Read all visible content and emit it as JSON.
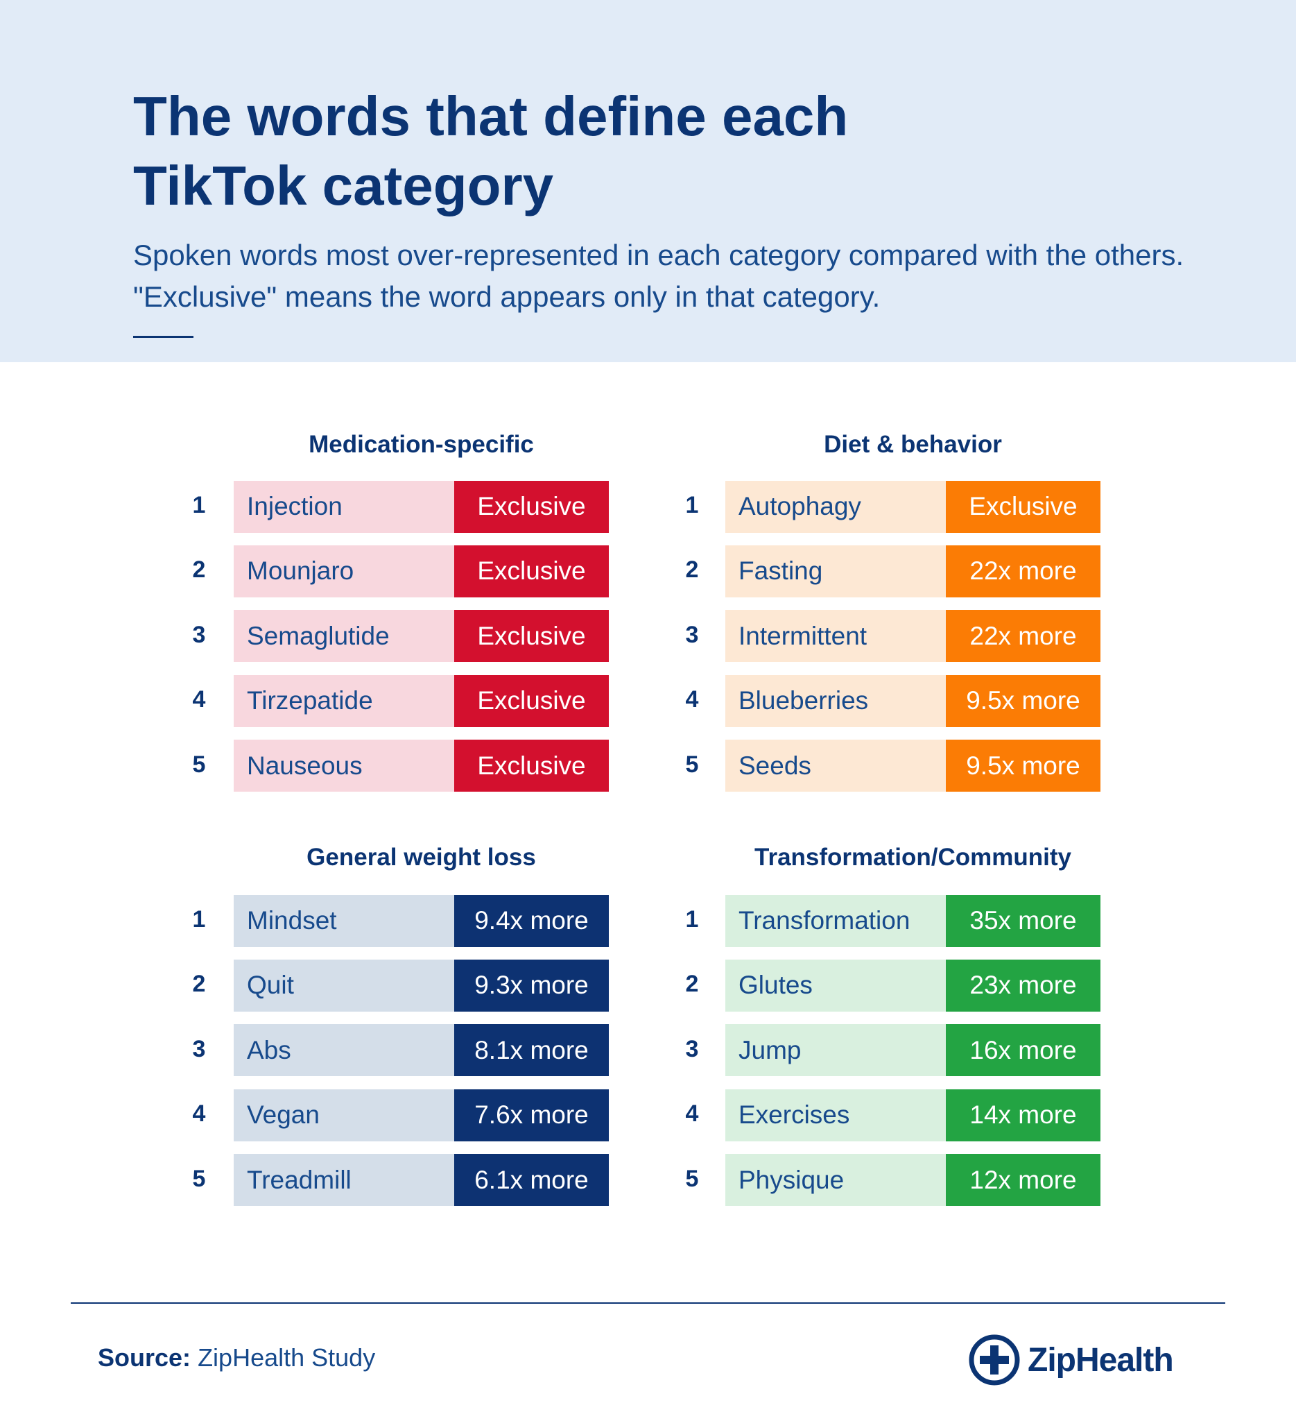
{
  "header": {
    "title": "The words that define each TikTok category",
    "subtitle": [
      "Spoken words most over-represented in each category compared with the others.",
      "\"Exclusive\" means the word appears only in that category."
    ]
  },
  "panels": [
    {
      "title": "Medication-specific",
      "color": "#d3102e",
      "light_color": "#f8d7de",
      "rows": [
        [
          "1",
          "Injection",
          "Exclusive"
        ],
        [
          "2",
          "Mounjaro",
          "Exclusive"
        ],
        [
          "3",
          "Semaglutide",
          "Exclusive"
        ],
        [
          "4",
          "Tirzepatide",
          "Exclusive"
        ],
        [
          "5",
          "Nauseous",
          "Exclusive"
        ]
      ]
    },
    {
      "title": "Diet & behavior",
      "color": "#fb7c05",
      "light_color": "#fde8d4",
      "rows": [
        [
          "1",
          "Autophagy",
          "Exclusive"
        ],
        [
          "2",
          "Fasting",
          "22x more"
        ],
        [
          "3",
          "Intermittent",
          "22x more"
        ],
        [
          "4",
          "Blueberries",
          "9.5x more"
        ],
        [
          "5",
          "Seeds",
          "9.5x more"
        ]
      ]
    },
    {
      "title": "General weight loss",
      "color": "#0d3272",
      "light_color": "#d4dee9",
      "rows": [
        [
          "1",
          "Mindset",
          "9.4x more"
        ],
        [
          "2",
          "Quit",
          "9.3x more"
        ],
        [
          "3",
          "Abs",
          "8.1x more"
        ],
        [
          "4",
          "Vegan",
          "7.6x more"
        ],
        [
          "5",
          "Treadmill",
          "6.1x more"
        ]
      ]
    },
    {
      "title": "Transformation/Community",
      "color": "#23a443",
      "light_color": "#d9f0df",
      "rows": [
        [
          "1",
          "Transformation",
          "35x more"
        ],
        [
          "2",
          "Glutes",
          "23x more"
        ],
        [
          "3",
          "Jump",
          "16x more"
        ],
        [
          "4",
          "Exercises",
          "14x more"
        ],
        [
          "5",
          "Physique",
          "12x more"
        ]
      ]
    }
  ],
  "footer": {
    "source_label": "Source:",
    "source": "ZipHealth Study",
    "logo": "ZipHealth"
  }
}
